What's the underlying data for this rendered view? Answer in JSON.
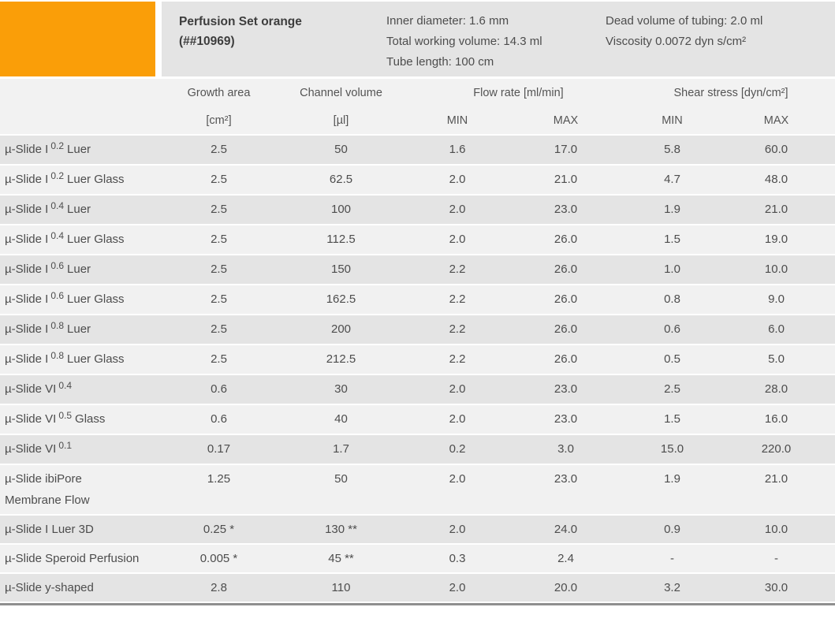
{
  "header": {
    "accent_color": "#FA9E08",
    "title_line1": "Perfusion Set orange",
    "title_line2": "(##10969)",
    "specs_col1": [
      "Inner diameter: 1.6 mm",
      "Total working volume: 14.3 ml",
      "Tube length: 100 cm"
    ],
    "specs_col2": [
      "Dead volume of tubing: 2.0 ml",
      "Viscosity 0.0072 dyn s/cm²"
    ]
  },
  "table": {
    "column_headers": {
      "growth_area_line1": "Growth area",
      "growth_area_line2": "[cm²]",
      "channel_volume_line1": "Channel volume",
      "channel_volume_line2": "[µl]",
      "flow_rate_group": "Flow rate [ml/min]",
      "shear_stress_group": "Shear stress [dyn/cm²]",
      "flow_min": "MIN",
      "flow_max": "MAX",
      "shear_min": "MIN",
      "shear_max": "MAX"
    },
    "rows": [
      {
        "name_base": "µ-Slide I",
        "name_sup": "0.2",
        "name_rest": "Luer",
        "name_line2": "",
        "growth_area": "2.5",
        "channel_volume": "50",
        "flow_min": "1.6",
        "flow_max": "17.0",
        "shear_min": "5.8",
        "shear_max": "60.0"
      },
      {
        "name_base": "µ-Slide I",
        "name_sup": "0.2",
        "name_rest": "Luer Glass",
        "name_line2": "",
        "growth_area": "2.5",
        "channel_volume": "62.5",
        "flow_min": "2.0",
        "flow_max": "21.0",
        "shear_min": "4.7",
        "shear_max": "48.0"
      },
      {
        "name_base": "µ-Slide I",
        "name_sup": "0.4",
        "name_rest": "Luer",
        "name_line2": "",
        "growth_area": "2.5",
        "channel_volume": "100",
        "flow_min": "2.0",
        "flow_max": "23.0",
        "shear_min": "1.9",
        "shear_max": "21.0"
      },
      {
        "name_base": "µ-Slide I",
        "name_sup": "0.4",
        "name_rest": "Luer Glass",
        "name_line2": "",
        "growth_area": "2.5",
        "channel_volume": "112.5",
        "flow_min": "2.0",
        "flow_max": "26.0",
        "shear_min": "1.5",
        "shear_max": "19.0"
      },
      {
        "name_base": "µ-Slide I",
        "name_sup": "0.6",
        "name_rest": "Luer",
        "name_line2": "",
        "growth_area": "2.5",
        "channel_volume": "150",
        "flow_min": "2.2",
        "flow_max": "26.0",
        "shear_min": "1.0",
        "shear_max": "10.0"
      },
      {
        "name_base": "µ-Slide I",
        "name_sup": "0.6",
        "name_rest": "Luer Glass",
        "name_line2": "",
        "growth_area": "2.5",
        "channel_volume": "162.5",
        "flow_min": "2.2",
        "flow_max": "26.0",
        "shear_min": "0.8",
        "shear_max": "9.0"
      },
      {
        "name_base": "µ-Slide I",
        "name_sup": "0.8",
        "name_rest": "Luer",
        "name_line2": "",
        "growth_area": "2.5",
        "channel_volume": "200",
        "flow_min": "2.2",
        "flow_max": "26.0",
        "shear_min": "0.6",
        "shear_max": "6.0"
      },
      {
        "name_base": "µ-Slide I",
        "name_sup": "0.8",
        "name_rest": "Luer Glass",
        "name_line2": "",
        "growth_area": "2.5",
        "channel_volume": "212.5",
        "flow_min": "2.2",
        "flow_max": "26.0",
        "shear_min": "0.5",
        "shear_max": "5.0"
      },
      {
        "name_base": "µ-Slide VI",
        "name_sup": "0.4",
        "name_rest": "",
        "name_line2": "",
        "growth_area": "0.6",
        "channel_volume": "30",
        "flow_min": "2.0",
        "flow_max": "23.0",
        "shear_min": "2.5",
        "shear_max": "28.0"
      },
      {
        "name_base": "µ-Slide VI",
        "name_sup": "0.5",
        "name_rest": "Glass",
        "name_line2": "",
        "growth_area": "0.6",
        "channel_volume": "40",
        "flow_min": "2.0",
        "flow_max": "23.0",
        "shear_min": "1.5",
        "shear_max": "16.0"
      },
      {
        "name_base": "µ-Slide VI",
        "name_sup": "0.1",
        "name_rest": "",
        "name_line2": "",
        "growth_area": "0.17",
        "channel_volume": "1.7",
        "flow_min": "0.2",
        "flow_max": "3.0",
        "shear_min": "15.0",
        "shear_max": "220.0"
      },
      {
        "name_base": "µ-Slide ibiPore",
        "name_sup": "",
        "name_rest": "",
        "name_line2": "Membrane Flow",
        "growth_area": "1.25",
        "channel_volume": "50",
        "flow_min": "2.0",
        "flow_max": "23.0",
        "shear_min": "1.9",
        "shear_max": "21.0"
      },
      {
        "name_base": "µ-Slide I Luer 3D",
        "name_sup": "",
        "name_rest": "",
        "name_line2": "",
        "growth_area": "0.25 *",
        "channel_volume": "130 **",
        "flow_min": "2.0",
        "flow_max": "24.0",
        "shear_min": "0.9",
        "shear_max": "10.0"
      },
      {
        "name_base": "µ-Slide Speroid Perfusion",
        "name_sup": "",
        "name_rest": "",
        "name_line2": "",
        "growth_area": "0.005 *",
        "channel_volume": "45 **",
        "flow_min": "0.3",
        "flow_max": "2.4",
        "shear_min": "-",
        "shear_max": "-"
      },
      {
        "name_base": "µ-Slide y-shaped",
        "name_sup": "",
        "name_rest": "",
        "name_line2": "",
        "growth_area": "2.8",
        "channel_volume": "110",
        "flow_min": "2.0",
        "flow_max": "20.0",
        "shear_min": "3.2",
        "shear_max": "30.0"
      }
    ]
  }
}
